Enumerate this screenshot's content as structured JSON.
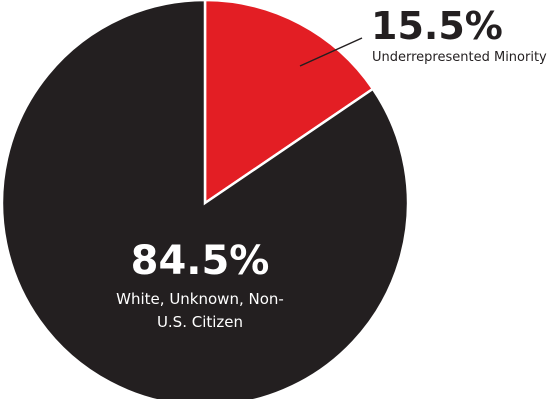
{
  "chart_data": {
    "type": "pie",
    "categories": [
      "Underrepresented Minority",
      "White, Unknown, Non-U.S. Citizen"
    ],
    "values": [
      15.5,
      84.5
    ],
    "value_labels": [
      "15.5%",
      "84.5%"
    ],
    "colors": [
      "#e31e24",
      "#231f20"
    ]
  }
}
